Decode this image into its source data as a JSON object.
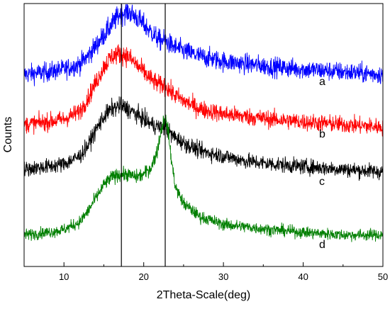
{
  "chart_data": {
    "type": "line",
    "title": "",
    "xlabel": "2Theta-Scale(deg)",
    "ylabel": "Counts",
    "xlim": [
      5,
      50
    ],
    "ylim": [
      0,
      100
    ],
    "xticks": [
      10,
      20,
      30,
      40,
      50
    ],
    "grid": false,
    "legend": "none",
    "reference_lines_x": [
      17.2,
      22.7
    ],
    "series": [
      {
        "label": "a",
        "color": "#0000ff",
        "label_x": 42.0,
        "label_y": 69,
        "x": [
          5,
          8,
          10,
          12,
          13,
          14,
          15,
          16,
          17,
          18,
          19,
          20,
          21,
          22,
          22.7,
          23.5,
          25,
          27,
          30,
          33,
          36,
          40,
          45,
          50
        ],
        "y": [
          73,
          74,
          75,
          77,
          80,
          84,
          88,
          92,
          96,
          97,
          95,
          92,
          89,
          86,
          86,
          84,
          82,
          80,
          78,
          77,
          76,
          75,
          74,
          73
        ],
        "noise": 2.4
      },
      {
        "label": "b",
        "color": "#ff0000",
        "label_x": 42.0,
        "label_y": 49,
        "x": [
          5,
          8,
          10,
          12,
          13,
          14,
          15,
          16,
          17,
          18,
          19,
          20,
          21,
          22,
          22.7,
          23.5,
          25,
          27,
          30,
          33,
          36,
          40,
          45,
          50
        ],
        "y": [
          54,
          55,
          56,
          59,
          64,
          70,
          76,
          80,
          81,
          80,
          77,
          74,
          71,
          69,
          69,
          66,
          63,
          60,
          58,
          57,
          56,
          55,
          54,
          53
        ],
        "noise": 2.4
      },
      {
        "label": "c",
        "color": "#000000",
        "label_x": 42.0,
        "label_y": 31,
        "x": [
          5,
          8,
          10,
          12,
          13,
          14,
          15,
          16,
          17,
          18,
          19,
          20,
          21,
          22,
          22.7,
          23.5,
          25,
          27,
          30,
          33,
          36,
          40,
          45,
          50
        ],
        "y": [
          37,
          38,
          39,
          42,
          46,
          52,
          57,
          60,
          61,
          60,
          58,
          56,
          54,
          53,
          53,
          50,
          47,
          44,
          42,
          40,
          39,
          38,
          37,
          36
        ],
        "noise": 2.4
      },
      {
        "label": "d",
        "color": "#007f00",
        "label_x": 42.0,
        "label_y": 7,
        "x": [
          5,
          8,
          10,
          12,
          13,
          14,
          15,
          16,
          17,
          18,
          19,
          20,
          21,
          21.7,
          22.2,
          22.6,
          23.0,
          23.5,
          24,
          25,
          27,
          30,
          33,
          36,
          40,
          45,
          50
        ],
        "y": [
          12,
          13,
          14,
          17,
          21,
          26,
          31,
          34,
          35,
          35,
          34,
          35,
          38,
          44,
          52,
          57,
          53,
          40,
          30,
          24,
          19,
          16,
          15,
          14,
          13,
          12,
          12
        ],
        "noise": 2.2
      }
    ]
  }
}
